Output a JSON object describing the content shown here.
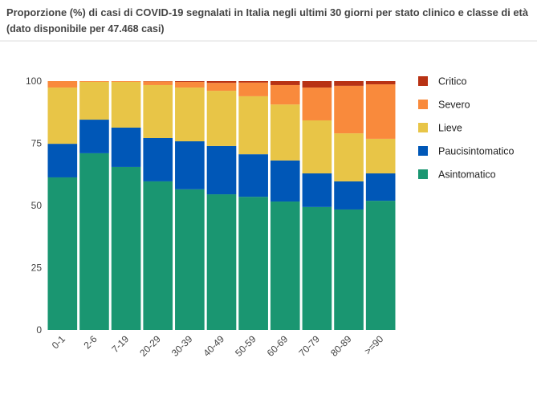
{
  "chart_data": {
    "type": "stacked_bar",
    "title_lines": [
      "Proporzione (%) di casi di COVID-19 segnalati in Italia negli ultimi 30 giorni per stato clinico e classe di età",
      "(dato disponibile per 47.468 casi)"
    ],
    "categories": [
      "0-1",
      "2-6",
      "7-19",
      "20-29",
      "30-39",
      "40-49",
      "50-59",
      "60-69",
      "70-79",
      "80-89",
      ">=90"
    ],
    "series": [
      {
        "name": "Asintomatico",
        "color": "#1a9671",
        "values": [
          61.3,
          71,
          65.5,
          59.7,
          56.5,
          54.5,
          53.5,
          51.6,
          49.4,
          48.4,
          51.9
        ]
      },
      {
        "name": "Paucisintomatico",
        "color": "#0057b7",
        "values": [
          13.5,
          13.5,
          15.8,
          17.4,
          19.3,
          19.4,
          17.1,
          16.5,
          13.5,
          11.3,
          11
        ]
      },
      {
        "name": "Lieve",
        "color": "#e8c547",
        "values": [
          22.6,
          15.2,
          18.4,
          21.3,
          21.6,
          22.2,
          23.3,
          22.5,
          21.3,
          19.3,
          13.9
        ]
      },
      {
        "name": "Severo",
        "color": "#f98a3c",
        "values": [
          2.6,
          0.3,
          0.3,
          1.5,
          2.3,
          3.2,
          5.5,
          7.8,
          13.2,
          19.1,
          21.9
        ]
      },
      {
        "name": "Critico",
        "color": "#b83214",
        "values": [
          0,
          0,
          0,
          0.1,
          0.3,
          0.7,
          0.6,
          1.6,
          2.6,
          1.9,
          1.3
        ]
      }
    ],
    "ylim": [
      0,
      100
    ],
    "yticks": [
      0,
      25,
      50,
      75,
      100
    ],
    "legend": "right"
  }
}
